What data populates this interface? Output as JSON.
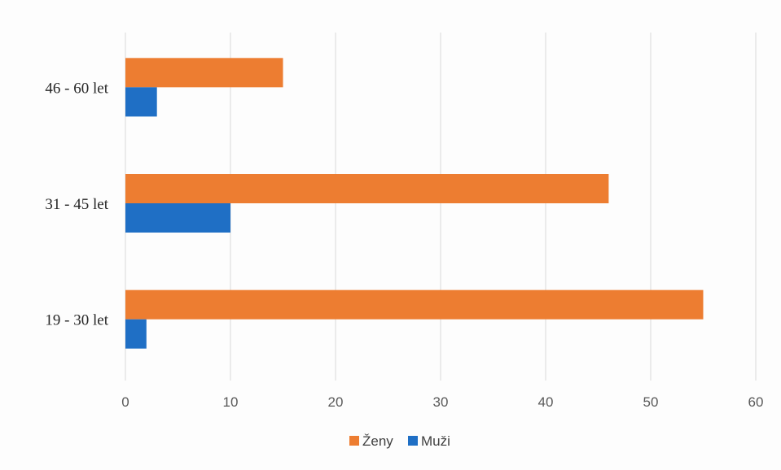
{
  "chart_data": {
    "type": "bar",
    "orientation": "horizontal",
    "categories": [
      "46 - 60 let",
      "31 - 45 let",
      "19 - 30 let"
    ],
    "series": [
      {
        "name": "Ženy",
        "values": [
          15,
          46,
          55
        ],
        "color": "#ED7D31"
      },
      {
        "name": "Muži",
        "values": [
          3,
          10,
          2
        ],
        "color": "#1F6FC5"
      }
    ],
    "xlim": [
      0,
      60
    ],
    "xticks": [
      0,
      10,
      20,
      30,
      40,
      50,
      60
    ],
    "grid": true,
    "legend_position": "bottom",
    "title": "",
    "xlabel": "",
    "ylabel": ""
  }
}
